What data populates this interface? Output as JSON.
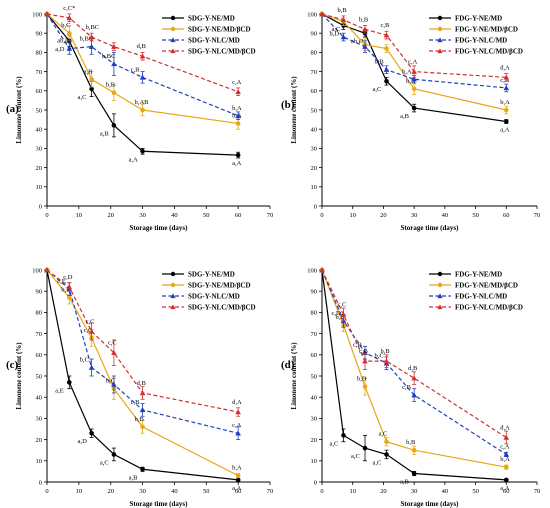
{
  "chart_data": [
    {
      "type": "line",
      "panel_label": "(a)",
      "xlabel": "Storage time (days)",
      "ylabel": "Limonene content (%)",
      "xlim": [
        0,
        70
      ],
      "ylim": [
        0,
        100
      ],
      "xticks": [
        0,
        10,
        20,
        30,
        40,
        50,
        60,
        70
      ],
      "yticks": [
        0,
        10,
        20,
        30,
        40,
        50,
        60,
        70,
        80,
        90,
        100
      ],
      "legend_position": "top-right",
      "series": [
        {
          "name": "SDG-Y-NE/MD",
          "color": "#000000",
          "dash": "solid",
          "marker": "circle",
          "x": [
            0,
            7,
            14,
            21,
            30,
            60
          ],
          "y": [
            100,
            86,
            61,
            42,
            28.5,
            26.5
          ],
          "err": [
            0,
            3,
            4,
            6,
            1.5,
            1.5
          ],
          "labels": [
            "",
            "a,D",
            "a,C",
            "a,B",
            "a,A",
            "a,A"
          ]
        },
        {
          "name": "SDG-Y-NE/MD/βCD",
          "color": "#e6a817",
          "dash": "solid",
          "marker": "circle",
          "x": [
            0,
            7,
            14,
            21,
            30,
            60
          ],
          "y": [
            100,
            90,
            66,
            59,
            50,
            43
          ],
          "err": [
            0,
            4,
            4,
            4,
            3,
            3
          ],
          "labels": [
            "",
            "b,C",
            "a,B",
            "b,B",
            "b,AB",
            "b,A"
          ]
        },
        {
          "name": "SDG-Y-NLC/MD",
          "color": "#1f3fbf",
          "dash": "dashed",
          "marker": "triangle",
          "x": [
            0,
            7,
            14,
            21,
            30,
            60
          ],
          "y": [
            100,
            82,
            83,
            74,
            67,
            47
          ],
          "err": [
            0,
            3,
            4,
            6,
            3,
            2
          ],
          "labels": [
            "",
            "ab,D",
            "b,BC",
            "b,BC",
            "c,B",
            "b,A"
          ]
        },
        {
          "name": "SDG-Y-NLC/MD/βCD",
          "color": "#d32f2f",
          "dash": "dashed",
          "marker": "triangle",
          "x": [
            0,
            7,
            14,
            21,
            30,
            60
          ],
          "y": [
            100,
            98,
            88,
            83,
            78,
            59.5
          ],
          "err": [
            0,
            2,
            2,
            2,
            2,
            2
          ],
          "labels": [
            "",
            "c,C*",
            "b,BC",
            "",
            "d,B",
            "c,A"
          ]
        }
      ]
    },
    {
      "type": "line",
      "panel_label": "(b)",
      "xlabel": "Storage time (days)",
      "ylabel": "Limonene content (%)",
      "xlim": [
        0,
        70
      ],
      "ylim": [
        0,
        100
      ],
      "xticks": [
        0,
        10,
        20,
        30,
        40,
        50,
        60,
        70
      ],
      "yticks": [
        0,
        10,
        20,
        30,
        40,
        50,
        60,
        70,
        80,
        90,
        100
      ],
      "legend_position": "top-right",
      "series": [
        {
          "name": "FDG-Y-NE/MD",
          "color": "#000000",
          "dash": "solid",
          "marker": "circle",
          "x": [
            0,
            7,
            14,
            21,
            30,
            60
          ],
          "y": [
            100,
            94,
            90,
            65,
            51,
            44
          ],
          "err": [
            0,
            2,
            2,
            2,
            2,
            1
          ],
          "labels": [
            "",
            "b,D",
            "ab,D",
            "a,C",
            "a,B",
            "a,A"
          ]
        },
        {
          "name": "FDG-Y-NE/MD/βCD",
          "color": "#e6a817",
          "dash": "solid",
          "marker": "circle",
          "x": [
            0,
            7,
            14,
            21,
            30,
            60
          ],
          "y": [
            100,
            96,
            84,
            82,
            61,
            50
          ],
          "err": [
            0,
            2,
            3,
            2,
            3,
            2
          ],
          "labels": [
            "",
            "",
            "",
            "",
            "b,B",
            "b,A"
          ]
        },
        {
          "name": "FDG-Y-NLC/MD",
          "color": "#1f3fbf",
          "dash": "dashed",
          "marker": "triangle",
          "x": [
            0,
            7,
            14,
            21,
            30,
            60
          ],
          "y": [
            100,
            88,
            83,
            71,
            66,
            61.5
          ],
          "err": [
            0,
            2,
            3,
            2,
            2,
            2
          ],
          "labels": [
            "",
            "a,C",
            "",
            "b,B",
            "b,A",
            "c,A"
          ]
        },
        {
          "name": "FDG-Y-NLC/MD/βCD",
          "color": "#d32f2f",
          "dash": "dashed",
          "marker": "triangle",
          "x": [
            0,
            7,
            14,
            21,
            30,
            60
          ],
          "y": [
            100,
            97,
            92,
            89,
            70,
            67
          ],
          "err": [
            0,
            2,
            2,
            2,
            3,
            2
          ],
          "labels": [
            "",
            "b,B",
            "b,B",
            "c,B",
            "c,A",
            "d,A"
          ]
        }
      ]
    },
    {
      "type": "line",
      "panel_label": "(c)",
      "xlabel": "Storage time (days)",
      "ylabel": "Limonene content (%)",
      "xlim": [
        0,
        70
      ],
      "ylim": [
        0,
        100
      ],
      "xticks": [
        0,
        10,
        20,
        30,
        40,
        50,
        60,
        70
      ],
      "yticks": [
        0,
        10,
        20,
        30,
        40,
        50,
        60,
        70,
        80,
        90,
        100
      ],
      "legend_position": "top-right",
      "series": [
        {
          "name": "SDG-Y-NE/MD",
          "color": "#000000",
          "dash": "solid",
          "marker": "circle",
          "x": [
            0,
            7,
            14,
            21,
            30,
            60
          ],
          "y": [
            100,
            47,
            23,
            13,
            6,
            1
          ],
          "err": [
            0,
            3,
            2,
            3,
            1,
            0.5
          ],
          "labels": [
            "",
            "a,E",
            "a,D",
            "a,C",
            "a,B",
            "a,A"
          ]
        },
        {
          "name": "SDG-Y-NE/MD/βCD",
          "color": "#e6a817",
          "dash": "solid",
          "marker": "circle",
          "x": [
            0,
            7,
            14,
            21,
            30,
            60
          ],
          "y": [
            100,
            87,
            68,
            44,
            26,
            3
          ],
          "err": [
            0,
            3,
            4,
            5,
            3,
            1
          ],
          "labels": [
            "",
            "b,E",
            "c,C",
            "b,C",
            "b,B",
            "b,A"
          ]
        },
        {
          "name": "SDG-Y-NLC/MD",
          "color": "#1f3fbf",
          "dash": "dashed",
          "marker": "triangle",
          "x": [
            0,
            7,
            14,
            21,
            30,
            60
          ],
          "y": [
            100,
            91,
            54,
            46,
            34,
            23
          ],
          "err": [
            0,
            3,
            4,
            4,
            3,
            3
          ],
          "labels": [
            "",
            "c,E",
            "b,C",
            "",
            "c,B",
            "c,A"
          ]
        },
        {
          "name": "SDG-Y-NLC/MD/βCD",
          "color": "#d32f2f",
          "dash": "dashed",
          "marker": "triangle",
          "x": [
            0,
            7,
            14,
            21,
            30,
            60
          ],
          "y": [
            100,
            92,
            71,
            61,
            42,
            33
          ],
          "err": [
            0,
            2,
            4,
            6,
            3,
            2
          ],
          "labels": [
            "",
            "c,D",
            "c,C",
            "c,C",
            "d,B",
            "d,A"
          ]
        }
      ]
    },
    {
      "type": "line",
      "panel_label": "(d)",
      "xlabel": "Storage time (days)",
      "ylabel": "Limonene content (%)",
      "xlim": [
        0,
        70
      ],
      "ylim": [
        0,
        100
      ],
      "xticks": [
        0,
        10,
        20,
        30,
        40,
        50,
        60,
        70
      ],
      "yticks": [
        0,
        10,
        20,
        30,
        40,
        50,
        60,
        70,
        80,
        90,
        100
      ],
      "legend_position": "top-right",
      "series": [
        {
          "name": "FDG-Y-NE/MD",
          "color": "#000000",
          "dash": "solid",
          "marker": "circle",
          "x": [
            0,
            7,
            14,
            21,
            30,
            60
          ],
          "y": [
            100,
            22,
            16,
            13,
            4,
            1
          ],
          "err": [
            0,
            3,
            6,
            2,
            1,
            0.5
          ],
          "labels": [
            "",
            "a,C",
            "a,C",
            "a,C",
            "a,B",
            "a,A"
          ]
        },
        {
          "name": "FDG-Y-NE/MD/βCD",
          "color": "#e6a817",
          "dash": "solid",
          "marker": "circle",
          "x": [
            0,
            7,
            14,
            21,
            30,
            60
          ],
          "y": [
            100,
            74,
            45,
            19,
            15,
            7
          ],
          "err": [
            0,
            3,
            4,
            2,
            2,
            1
          ],
          "labels": [
            "",
            "b,E",
            "b,D",
            "a,C",
            "b,B",
            "b,A"
          ]
        },
        {
          "name": "FDG-Y-NLC/MD",
          "color": "#1f3fbf",
          "dash": "dashed",
          "marker": "triangle",
          "x": [
            0,
            7,
            14,
            21,
            30,
            60
          ],
          "y": [
            100,
            76,
            61,
            56,
            41,
            13
          ],
          "err": [
            0,
            3,
            3,
            3,
            3,
            1
          ],
          "labels": [
            "",
            "c,D",
            "c,B",
            "b,C",
            "c,B",
            "c,A"
          ]
        },
        {
          "name": "FDG-Y-NLC/MD/βCD",
          "color": "#d32f2f",
          "dash": "dashed",
          "marker": "triangle",
          "x": [
            0,
            7,
            14,
            21,
            30,
            60
          ],
          "y": [
            100,
            79,
            57,
            57,
            49,
            21
          ],
          "err": [
            0,
            3,
            4,
            3,
            3,
            3
          ],
          "labels": [
            "",
            "c,C",
            "c,B",
            "b,B",
            "d,B",
            "d,A"
          ]
        }
      ]
    }
  ]
}
